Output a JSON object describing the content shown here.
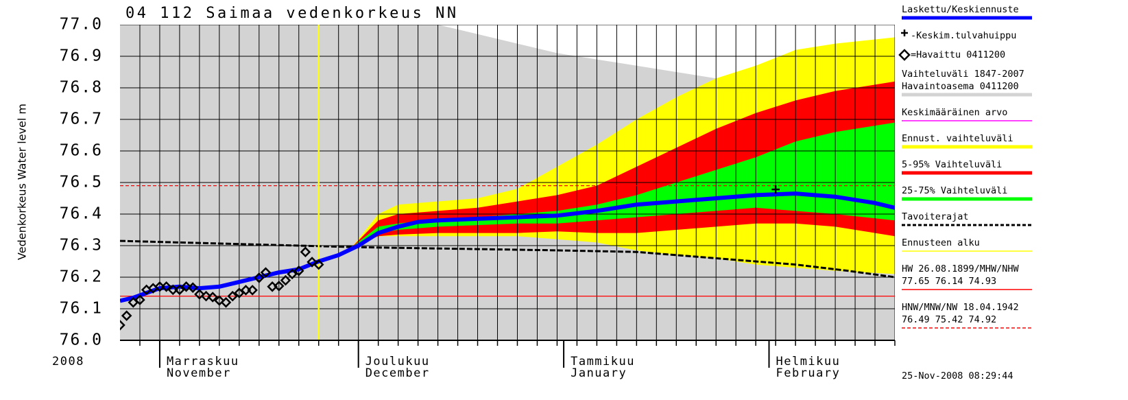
{
  "chart_data": {
    "type": "line",
    "title": "04 112 Saimaa vedenkorkeus NN",
    "ylabel": "Vedenkorkeus Water level m",
    "year": "2008",
    "timestamp": "25-Nov-2008 08:29:44",
    "xlim": [
      -6,
      111
    ],
    "xticks": [
      {
        "value": 0,
        "label": [
          "Marraskuu",
          "November"
        ]
      },
      {
        "value": 30,
        "label": [
          "Joulukuu",
          "December"
        ]
      },
      {
        "value": 61,
        "label": [
          "Tammikuu",
          "January"
        ]
      },
      {
        "value": 92,
        "label": [
          "Helmikuu",
          "February"
        ]
      }
    ],
    "xgrid": [
      -3,
      0,
      3,
      6,
      9,
      12,
      15,
      18,
      21,
      24,
      27,
      30,
      33,
      36,
      39,
      42,
      45,
      48,
      51,
      54,
      57,
      60,
      63,
      66,
      69,
      72,
      75,
      78,
      81,
      84,
      87,
      90,
      93,
      96,
      99,
      102,
      105,
      108,
      111
    ],
    "ylim": [
      76,
      77
    ],
    "yticks": [
      {
        "value": 76,
        "label": "76.0"
      },
      76.1,
      76.2,
      76.3,
      76.4,
      76.5,
      76.6,
      76.7,
      76.8,
      76.9,
      {
        "value": 77,
        "label": "77.0"
      }
    ],
    "grid": true,
    "legend": [
      {
        "lines": [
          "Laskettu/Keskiennuste"
        ],
        "color": "#0000ff",
        "swatch": "thick"
      },
      {
        "lines": [
          "-Keskim.tulvahuippu"
        ],
        "color": "#000000",
        "swatch": "plus"
      },
      {
        "lines": [
          "=Havaittu 0411200"
        ],
        "color": "#000000",
        "swatch": "diamond"
      },
      {
        "lines": [
          "Vaihteluväli 1847-2007",
          "Havaintoasema 0411200"
        ],
        "color": "#d3d3d3",
        "swatch": "thick"
      },
      {
        "lines": [
          "Keskimääräinen arvo"
        ],
        "color": "#ff00ff",
        "swatch": "thin"
      },
      {
        "lines": [
          "Ennust. vaihteluväli"
        ],
        "color": "#ffff00",
        "swatch": "thick"
      },
      {
        "lines": [
          "5-95% Vaihteluväli"
        ],
        "color": "#ff0000",
        "swatch": "thick"
      },
      {
        "lines": [
          "25-75% Vaihteluväli"
        ],
        "color": "#00ff00",
        "swatch": "thick"
      },
      {
        "lines": [
          "Tavoiterajat"
        ],
        "color": "#000000",
        "swatch": "dashed-thick"
      },
      {
        "lines": [
          "Ennusteen alku"
        ],
        "color": "#ffff00",
        "swatch": "thin"
      },
      {
        "lines": [
          "HW 26.08.1899/MHW/NHW",
          "77.65 76.14 74.93"
        ],
        "color": "#ff0000",
        "swatch": "thin"
      },
      {
        "lines": [
          "HNW/MNW/NW 18.04.1942",
          "76.49 75.42 74.92"
        ],
        "color": "#ff0000",
        "swatch": "dashed"
      }
    ],
    "series": [
      {
        "kind": "area",
        "legend": 3,
        "x": [
          -6,
          42,
          48,
          54,
          60,
          66,
          72,
          78,
          84,
          90,
          96,
          102,
          111
        ],
        "values": [
          77,
          77,
          76.97,
          76.94,
          76.91,
          76.89,
          76.87,
          76.85,
          76.83,
          76.82,
          76.82,
          76.82,
          76.82
        ]
      },
      {
        "kind": "band",
        "legend": 5,
        "x": [
          29,
          33,
          36,
          42,
          48,
          54,
          60,
          66,
          72,
          78,
          84,
          90,
          96,
          102,
          111
        ],
        "lower": [
          76.295,
          76.33,
          76.33,
          76.33,
          76.33,
          76.33,
          76.32,
          76.31,
          76.285,
          76.27,
          76.26,
          76.24,
          76.23,
          76.22,
          76.21
        ],
        "upper": [
          76.295,
          76.4,
          76.43,
          76.44,
          76.45,
          76.48,
          76.55,
          76.62,
          76.7,
          76.77,
          76.83,
          76.87,
          76.92,
          76.94,
          76.96
        ]
      },
      {
        "kind": "band",
        "legend": 6,
        "x": [
          29,
          33,
          36,
          42,
          48,
          54,
          60,
          66,
          72,
          78,
          84,
          90,
          96,
          102,
          111
        ],
        "lower": [
          76.295,
          76.33,
          76.335,
          76.34,
          76.34,
          76.34,
          76.345,
          76.34,
          76.34,
          76.35,
          76.36,
          76.37,
          76.37,
          76.36,
          76.33
        ],
        "upper": [
          76.295,
          76.38,
          76.4,
          76.41,
          76.42,
          76.44,
          76.46,
          76.49,
          76.55,
          76.61,
          76.67,
          76.72,
          76.76,
          76.79,
          76.82
        ]
      },
      {
        "kind": "band",
        "legend": 7,
        "x": [
          29,
          33,
          36,
          42,
          48,
          54,
          60,
          66,
          72,
          78,
          84,
          90,
          96,
          102,
          111
        ],
        "lower": [
          76.295,
          76.34,
          76.35,
          76.36,
          76.365,
          76.37,
          76.37,
          76.38,
          76.39,
          76.4,
          76.41,
          76.42,
          76.41,
          76.4,
          76.38
        ],
        "upper": [
          76.295,
          76.36,
          76.37,
          76.385,
          76.39,
          76.4,
          76.41,
          76.43,
          76.46,
          76.5,
          76.54,
          76.58,
          76.63,
          76.66,
          76.69
        ]
      },
      {
        "kind": "hline",
        "legend": 10,
        "values": [
          76.14
        ]
      },
      {
        "kind": "hline",
        "legend": 11,
        "values": [
          76.49
        ]
      },
      {
        "kind": "line",
        "legend": 8,
        "x": [
          -6,
          30,
          60,
          72,
          84,
          96,
          104,
          111
        ],
        "values": [
          76.315,
          76.295,
          76.285,
          76.28,
          76.26,
          76.24,
          76.22,
          76.2
        ]
      },
      {
        "kind": "vline",
        "legend": 9,
        "x": [
          24
        ]
      },
      {
        "kind": "line",
        "legend": 0,
        "x": [
          -6,
          -4,
          -2,
          0,
          3,
          6,
          9,
          12,
          15,
          18,
          21,
          24,
          27,
          30,
          33,
          36,
          39,
          42,
          48,
          54,
          60,
          66,
          72,
          78,
          84,
          90,
          96,
          102,
          108,
          111
        ],
        "values": [
          76.125,
          76.135,
          76.15,
          76.165,
          76.17,
          76.165,
          76.17,
          76.185,
          76.2,
          76.215,
          76.225,
          76.25,
          76.27,
          76.3,
          76.34,
          76.36,
          76.375,
          76.38,
          76.385,
          76.39,
          76.395,
          76.41,
          76.43,
          76.44,
          76.45,
          76.46,
          76.465,
          76.455,
          76.435,
          76.42
        ]
      },
      {
        "kind": "scatter",
        "legend": 2,
        "x": [
          -6,
          -5,
          -4,
          -3,
          -2,
          -1,
          0,
          1,
          2,
          3,
          4,
          5,
          6,
          7,
          8,
          9,
          10,
          11,
          12,
          13,
          14,
          15,
          16,
          17,
          18,
          19,
          20,
          21,
          22,
          23,
          24
        ],
        "values": [
          76.048,
          76.078,
          76.12,
          76.128,
          76.16,
          76.165,
          76.17,
          76.17,
          76.16,
          76.16,
          76.17,
          76.167,
          76.146,
          76.14,
          76.137,
          76.126,
          76.12,
          76.14,
          76.15,
          76.159,
          76.159,
          76.198,
          76.215,
          76.17,
          76.172,
          76.19,
          76.21,
          76.22,
          76.28,
          76.248,
          76.24
        ]
      },
      {
        "kind": "scatter",
        "legend": 1,
        "x": [
          93
        ],
        "values": [
          76.478
        ]
      }
    ]
  }
}
